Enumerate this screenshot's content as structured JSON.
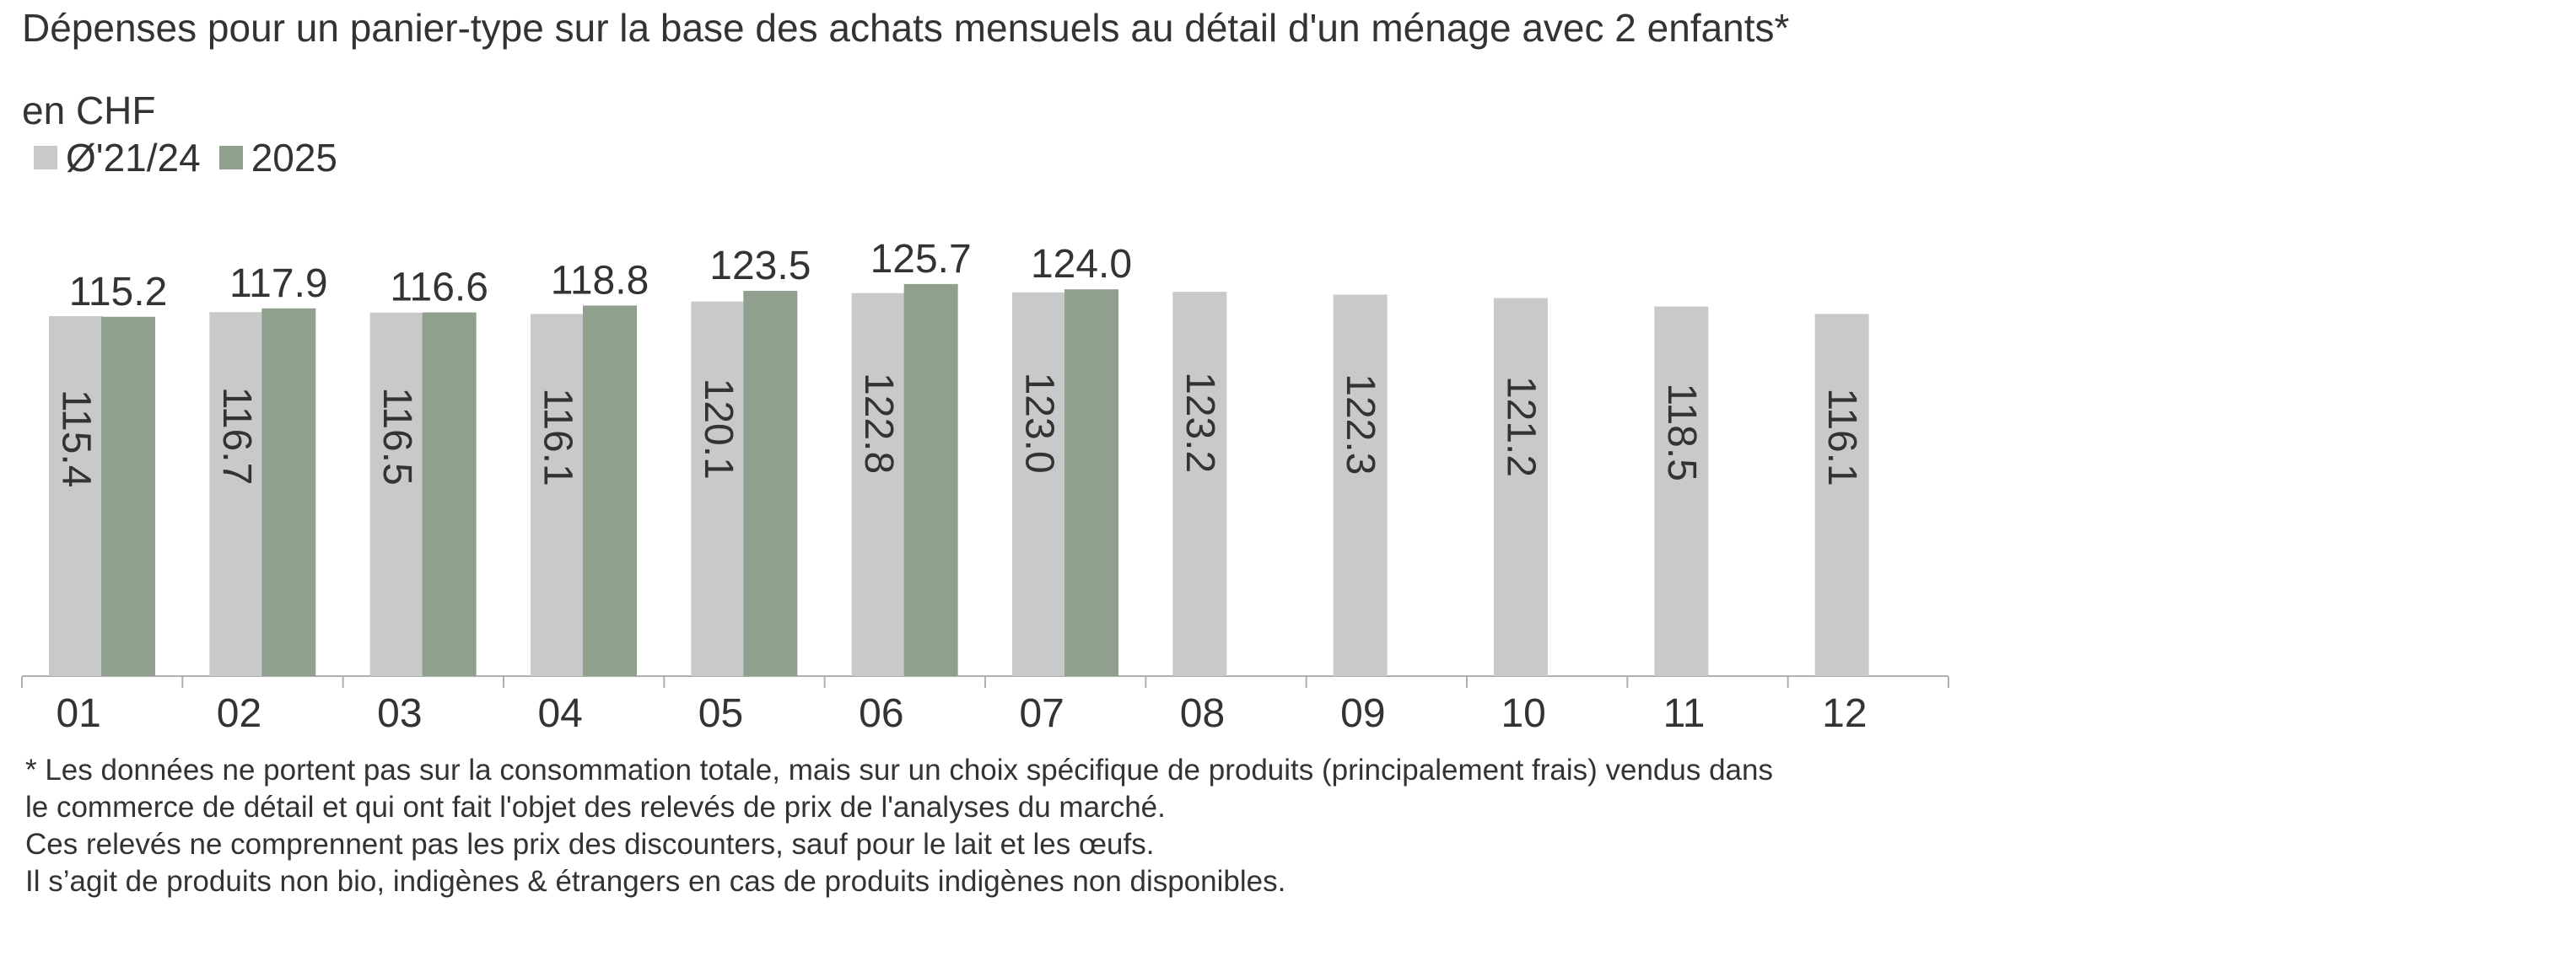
{
  "title": "Dépenses pour un panier-type sur la base des achats mensuels au détail d'un ménage avec 2 enfants*",
  "unit_label": "en CHF",
  "colors": {
    "series_avg": "#c8c9cb",
    "series_2025": "#8fa08c",
    "axis": "#b0b0b0",
    "text": "#333333"
  },
  "footnotes": [
    "* Les données ne portent pas sur la consommation totale, mais sur un choix spécifique de produits (principalement frais) vendus dans",
    "le commerce de détail et qui ont fait l'objet des relevés de prix de l'analyses du marché.",
    "Ces relevés ne comprennent pas les prix des discounters, sauf pour le lait et les œufs.",
    "Il s’agit de produits non bio, indigènes & étrangers en cas de produits indigènes non disponibles."
  ],
  "chart_data": {
    "type": "bar",
    "categories": [
      "01",
      "02",
      "03",
      "04",
      "05",
      "06",
      "07",
      "08",
      "09",
      "10",
      "11",
      "12"
    ],
    "series": [
      {
        "name": "Ø'21/24",
        "values": [
          115.4,
          116.7,
          116.5,
          116.1,
          120.1,
          122.8,
          123.0,
          123.2,
          122.3,
          121.2,
          118.5,
          116.1
        ],
        "labels": [
          "115.4",
          "116.7",
          "116.5",
          "116.1",
          "120.1",
          "122.8",
          "123.0",
          "123.2",
          "122.3",
          "121.2",
          "118.5",
          "116.1"
        ]
      },
      {
        "name": "2025",
        "values": [
          115.2,
          117.9,
          116.6,
          118.8,
          123.5,
          125.7,
          124.0,
          null,
          null,
          null,
          null,
          null
        ],
        "labels": [
          "115.2",
          "117.9",
          "116.6",
          "118.8",
          "123.5",
          "125.7",
          "124.0",
          "",
          "",
          "",
          "",
          ""
        ]
      }
    ],
    "legend_position": "top-left",
    "grid": false,
    "bar_label_style": {
      "Ø'21/24": "inside, rotated",
      "2025": "above bar"
    }
  }
}
